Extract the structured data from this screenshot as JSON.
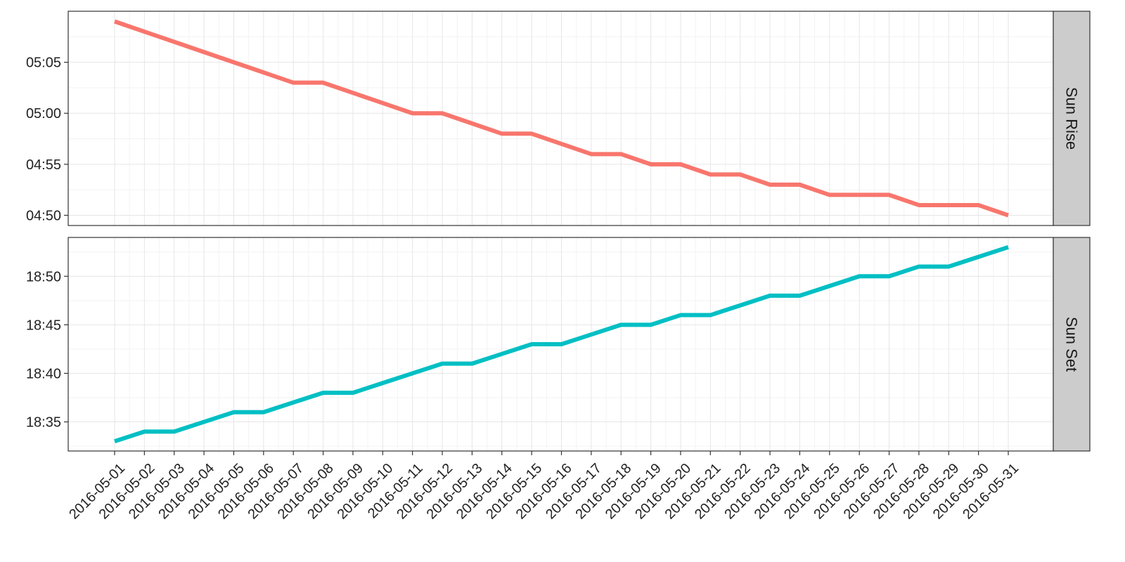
{
  "chart_data": {
    "type": "line",
    "facet_direction": "rows",
    "x_tick_rotation_deg": -45,
    "grid": true,
    "legend": "none",
    "x": [
      "2016-05-01",
      "2016-05-02",
      "2016-05-03",
      "2016-05-04",
      "2016-05-05",
      "2016-05-06",
      "2016-05-07",
      "2016-05-08",
      "2016-05-09",
      "2016-05-10",
      "2016-05-11",
      "2016-05-12",
      "2016-05-13",
      "2016-05-14",
      "2016-05-15",
      "2016-05-16",
      "2016-05-17",
      "2016-05-18",
      "2016-05-19",
      "2016-05-20",
      "2016-05-21",
      "2016-05-22",
      "2016-05-23",
      "2016-05-24",
      "2016-05-25",
      "2016-05-26",
      "2016-05-27",
      "2016-05-28",
      "2016-05-29",
      "2016-05-30",
      "2016-05-31"
    ],
    "panels": [
      {
        "strip_label": "Sun Rise",
        "color": "#F8766D",
        "y_ticks": [
          "04:50",
          "04:55",
          "05:00",
          "05:05"
        ],
        "ylim": [
          "04:49",
          "05:10"
        ],
        "values": [
          "05:09",
          "05:08",
          "05:07",
          "05:06",
          "05:05",
          "05:04",
          "05:03",
          "05:03",
          "05:02",
          "05:01",
          "05:00",
          "05:00",
          "04:59",
          "04:58",
          "04:58",
          "04:57",
          "04:56",
          "04:56",
          "04:55",
          "04:55",
          "04:54",
          "04:54",
          "04:53",
          "04:53",
          "04:52",
          "04:52",
          "04:52",
          "04:51",
          "04:51",
          "04:51",
          "04:50"
        ]
      },
      {
        "strip_label": "Sun Set",
        "color": "#00BFC4",
        "y_ticks": [
          "18:35",
          "18:40",
          "18:45",
          "18:50"
        ],
        "ylim": [
          "18:32",
          "18:54"
        ],
        "values": [
          "18:33",
          "18:34",
          "18:34",
          "18:35",
          "18:36",
          "18:36",
          "18:37",
          "18:38",
          "18:38",
          "18:39",
          "18:40",
          "18:41",
          "18:41",
          "18:42",
          "18:43",
          "18:43",
          "18:44",
          "18:45",
          "18:45",
          "18:46",
          "18:46",
          "18:47",
          "18:48",
          "18:48",
          "18:49",
          "18:50",
          "18:50",
          "18:51",
          "18:51",
          "18:52",
          "18:53"
        ]
      }
    ]
  }
}
